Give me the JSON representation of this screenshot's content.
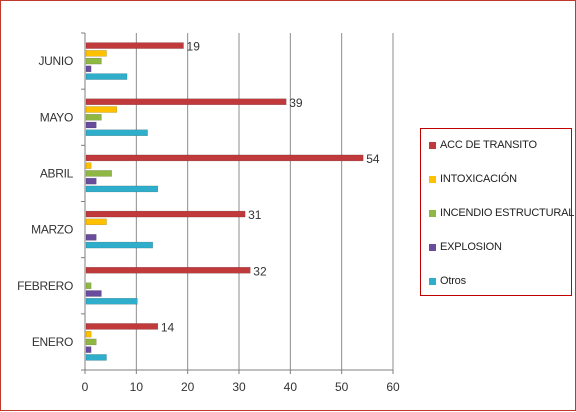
{
  "chart_data": {
    "type": "bar",
    "orientation": "horizontal",
    "categories": [
      "ENERO",
      "FEBRERO",
      "MARZO",
      "ABRIL",
      "MAYO",
      "JUNIO"
    ],
    "series": [
      {
        "name": "Otros",
        "color": "#2eaecb",
        "values": [
          4,
          10,
          13,
          14,
          12,
          8
        ]
      },
      {
        "name": "EXPLOSION",
        "color": "#6a4c9c",
        "values": [
          1,
          3,
          2,
          2,
          2,
          1
        ]
      },
      {
        "name": "INCENDIO ESTRUCTURAL",
        "color": "#8fb743",
        "values": [
          2,
          1,
          0,
          5,
          3,
          3
        ]
      },
      {
        "name": "INTOXICACIÓN",
        "color": "#ffc000",
        "values": [
          1,
          0,
          4,
          1,
          6,
          4
        ]
      },
      {
        "name": "ACC DE TRANSITO",
        "color": "#c0393b",
        "values": [
          14,
          32,
          31,
          54,
          39,
          19
        ],
        "data_labels": [
          "14",
          "32",
          "31",
          "54",
          "39",
          "19"
        ]
      }
    ],
    "x_ticks": [
      "0",
      "10",
      "20",
      "30",
      "40",
      "50",
      "60"
    ],
    "xlim": [
      0,
      60
    ],
    "grid": "vertical",
    "legend_position": "right"
  }
}
